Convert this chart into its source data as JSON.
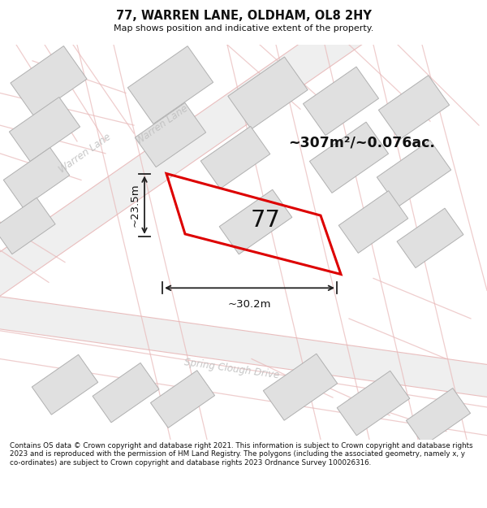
{
  "title_line1": "77, WARREN LANE, OLDHAM, OL8 2HY",
  "title_line2": "Map shows position and indicative extent of the property.",
  "footer_text": "Contains OS data © Crown copyright and database right 2021. This information is subject to Crown copyright and database rights 2023 and is reproduced with the permission of HM Land Registry. The polygons (including the associated geometry, namely x, y co-ordinates) are subject to Crown copyright and database rights 2023 Ordnance Survey 100026316.",
  "area_label": "~307m²/~0.076ac.",
  "number_label": "77",
  "dim_width": "~30.2m",
  "dim_height": "~23.5m",
  "street_warren_label": "Warren Lane",
  "street_spring_label": "Spring Clough Drive",
  "bg_color": "#f8f8f8",
  "map_bg": "#f5f3f3",
  "plot_outline_color": "#dd0000",
  "building_fill": "#e0e0e0",
  "building_edge": "#b0b0b0",
  "road_fill": "#f0f0f0",
  "road_edge_color": "#e8b8b8",
  "text_color": "#111111",
  "street_text_color": "#c0c0c0",
  "dim_line_color": "#222222"
}
